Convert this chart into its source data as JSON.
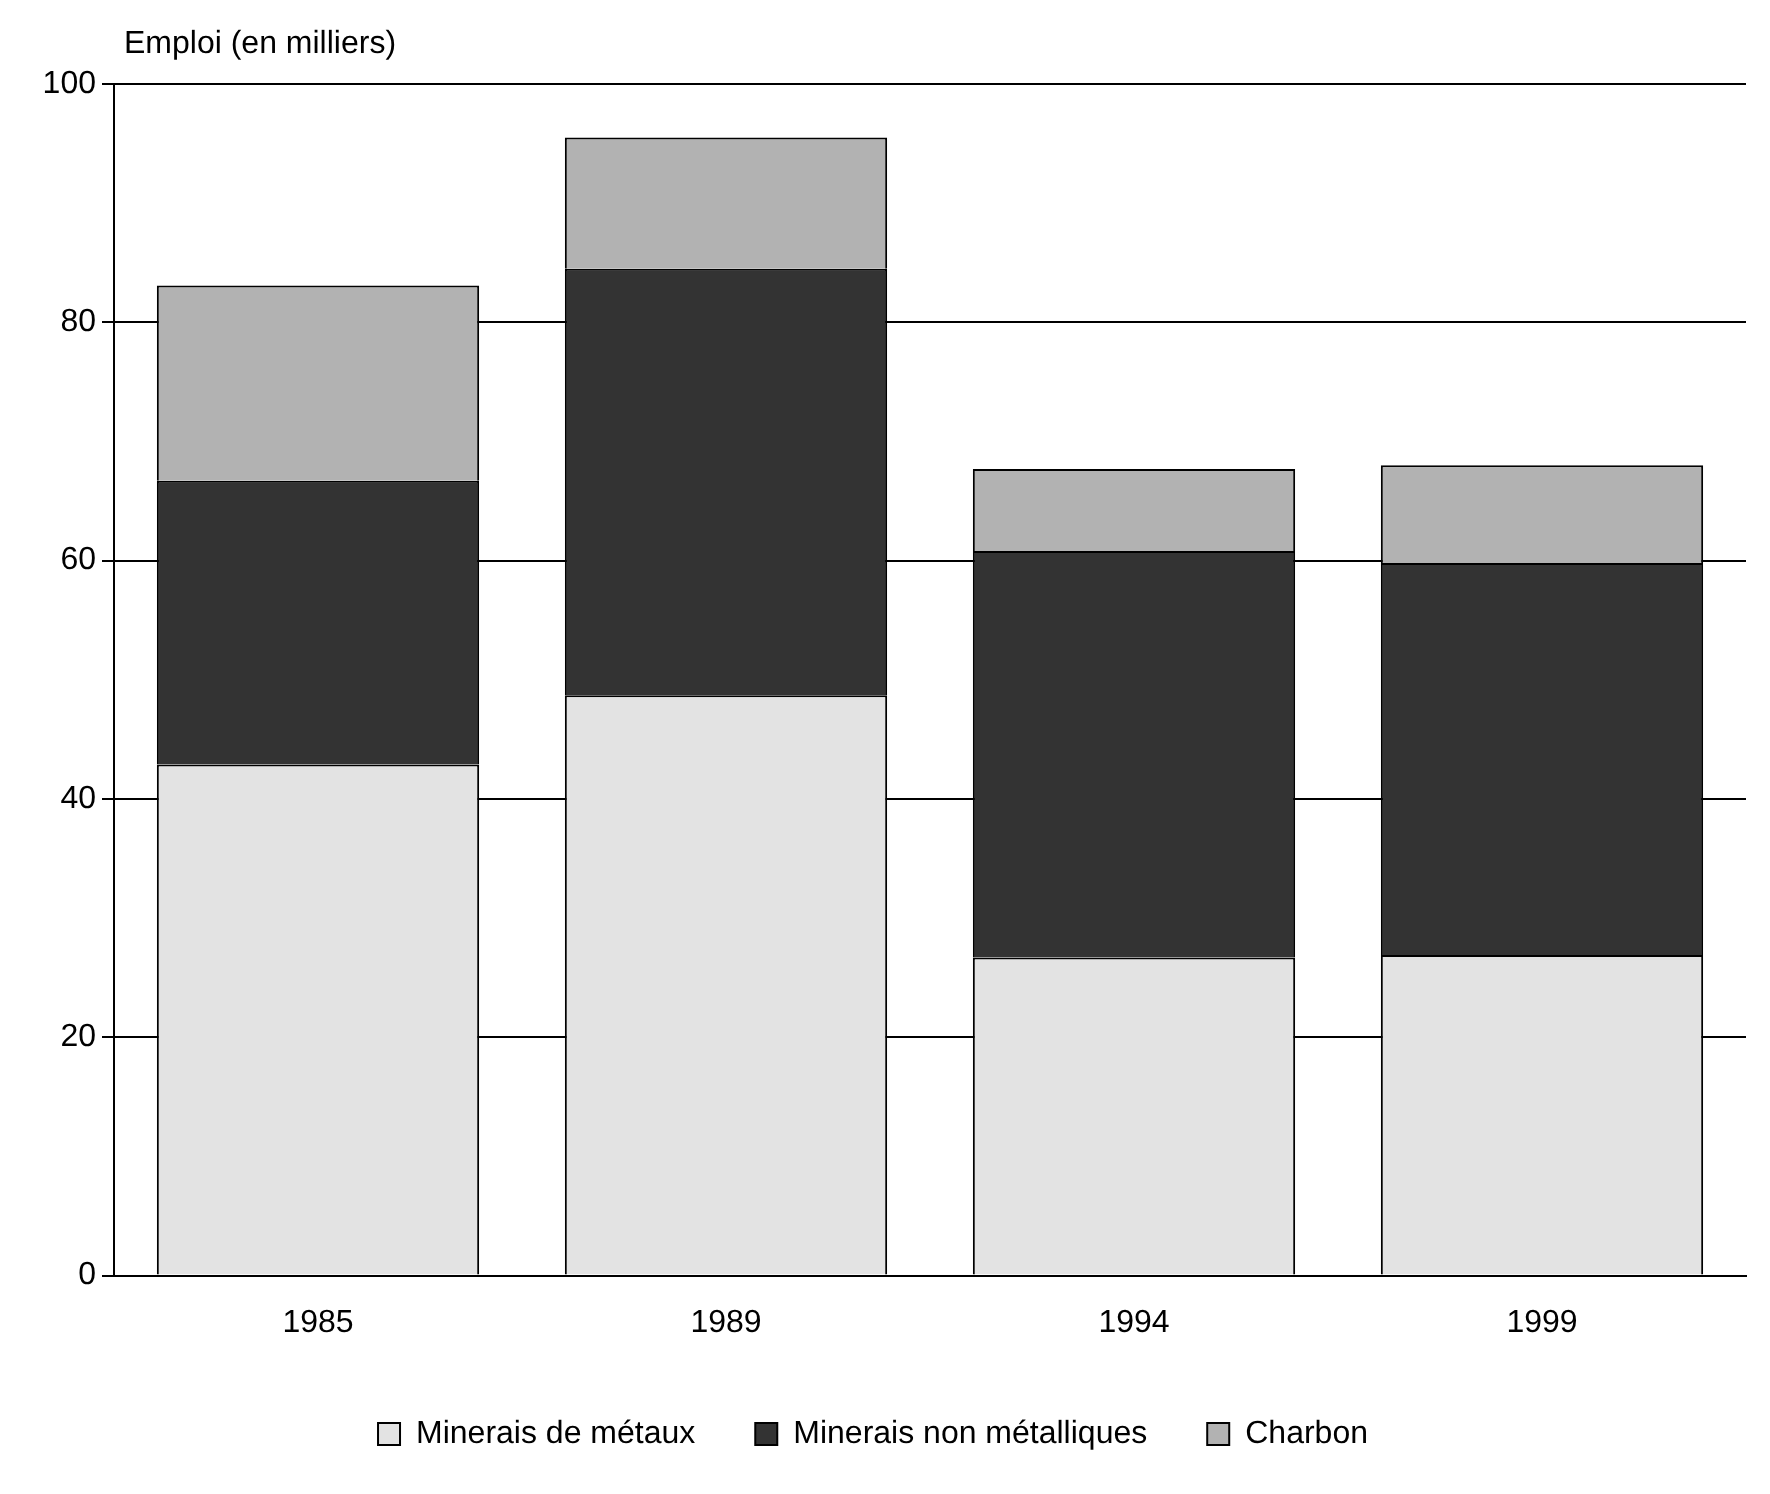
{
  "chart_data": {
    "type": "bar",
    "stacked": true,
    "ylabel": "Emploi (en milliers)",
    "categories": [
      "1985",
      "1989",
      "1994",
      "1999"
    ],
    "series": [
      {
        "name": "Minerais de métaux",
        "color": "#e3e3e3",
        "values": [
          42.9,
          48.7,
          26.7,
          26.9
        ]
      },
      {
        "name": "Minerais non métalliques",
        "color": "#333333",
        "values": [
          23.8,
          35.8,
          34.1,
          32.9
        ]
      },
      {
        "name": "Charbon",
        "color": "#b2b2b2",
        "values": [
          16.4,
          11.0,
          6.9,
          8.2
        ]
      }
    ],
    "ylim": [
      0,
      100
    ],
    "yticks": [
      0,
      20,
      40,
      60,
      80,
      100
    ],
    "grid": "y",
    "legend": "bottom"
  }
}
